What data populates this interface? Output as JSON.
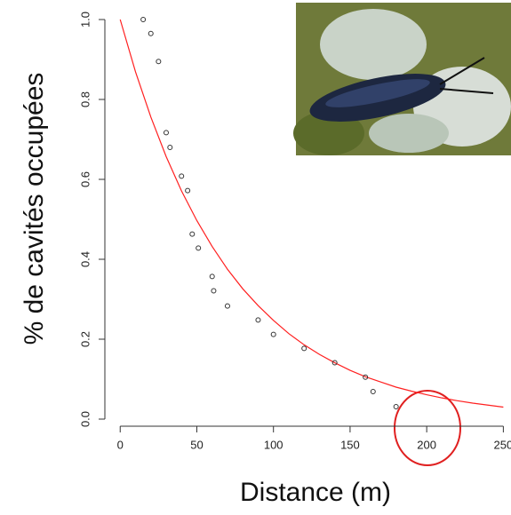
{
  "chart_data": {
    "type": "scatter",
    "x_label": "Distance (m)",
    "y_label": "% de cavités occupées",
    "xlim": [
      -10,
      255
    ],
    "ylim": [
      0,
      1.0
    ],
    "xticks": [
      0,
      50,
      100,
      150,
      200,
      250
    ],
    "yticks": [
      {
        "value": 0,
        "label": "0.0"
      },
      0.2,
      0.4,
      0.6,
      0.8,
      {
        "value": 1,
        "label": "1.0"
      }
    ],
    "points": {
      "color": "#333333",
      "x": [
        15,
        20,
        25,
        30,
        32.5,
        40,
        44,
        47,
        51,
        60,
        61,
        70,
        90,
        100,
        120,
        140,
        160,
        165,
        180
      ],
      "values": [
        1.0,
        0.965,
        0.895,
        0.717,
        0.68,
        0.608,
        0.572,
        0.463,
        0.428,
        0.357,
        0.321,
        0.283,
        0.248,
        0.212,
        0.177,
        0.141,
        0.105,
        0.069,
        0.031
      ]
    },
    "fit_line": {
      "color": "#ff2020",
      "x": [
        0,
        10,
        20,
        30,
        40,
        50,
        60,
        70,
        80,
        90,
        100,
        110,
        120,
        130,
        140,
        150,
        160,
        170,
        180,
        190,
        200,
        210,
        220,
        230,
        240,
        250
      ],
      "values": [
        1.0,
        0.869,
        0.756,
        0.657,
        0.571,
        0.497,
        0.432,
        0.375,
        0.326,
        0.284,
        0.247,
        0.214,
        0.186,
        0.162,
        0.141,
        0.122,
        0.106,
        0.093,
        0.08,
        0.07,
        0.061,
        0.053,
        0.046,
        0.04,
        0.035,
        0.03
      ]
    }
  }
}
